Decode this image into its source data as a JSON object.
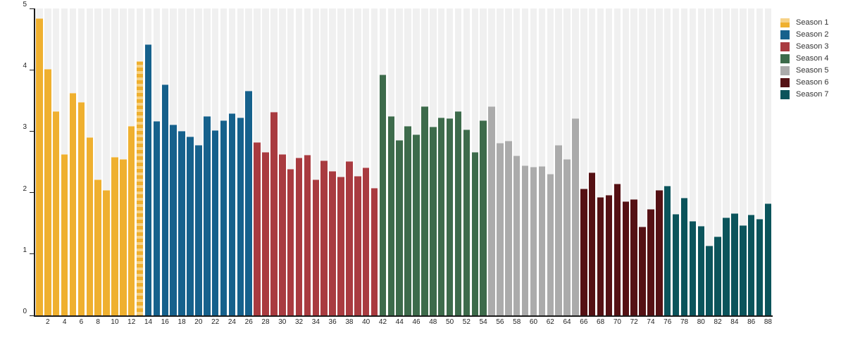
{
  "page": {
    "background_color": "#ffffff",
    "stripe_color": "#f0f0f0",
    "axis_color": "#1a1a1a",
    "text_color": "#222222"
  },
  "chart_data": {
    "type": "bar",
    "title": "",
    "xlabel": "",
    "ylabel": "",
    "ylim": [
      0,
      5
    ],
    "yticks": [
      "0",
      "1",
      "2",
      "3",
      "4",
      "5"
    ],
    "x_tick_labels_every": 2,
    "grid": "vertical background stripes, one per bar slot",
    "legend_position": "top-right",
    "hatch_light_color": "#f6d287",
    "hatched_episodes": [
      13
    ],
    "series": [
      {
        "name": "Season 1",
        "color": "#efb02f",
        "swatch_two_tone": true,
        "episodes": [
          1,
          2,
          3,
          4,
          5,
          6,
          7,
          8,
          9,
          10,
          11,
          12,
          13
        ],
        "values": [
          4.84,
          4.01,
          3.33,
          2.63,
          3.62,
          3.48,
          2.9,
          2.21,
          2.04,
          2.58,
          2.55,
          3.08,
          4.14
        ]
      },
      {
        "name": "Season 2",
        "color": "#16618c",
        "swatch_two_tone": false,
        "episodes": [
          14,
          15,
          16,
          17,
          18,
          19,
          20,
          21,
          22,
          23,
          24,
          25,
          26
        ],
        "values": [
          4.42,
          3.16,
          3.76,
          3.11,
          3.0,
          2.91,
          2.78,
          3.25,
          3.02,
          3.18,
          3.29,
          3.22,
          3.66
        ]
      },
      {
        "name": "Season 3",
        "color": "#a93b40",
        "swatch_two_tone": false,
        "episodes": [
          27,
          28,
          29,
          30,
          31,
          32,
          33,
          34,
          35,
          36,
          37,
          38,
          39,
          40,
          41
        ],
        "values": [
          2.82,
          2.66,
          3.32,
          2.63,
          2.39,
          2.57,
          2.61,
          2.21,
          2.52,
          2.35,
          2.26,
          2.51,
          2.27,
          2.41,
          2.08
        ]
      },
      {
        "name": "Season 4",
        "color": "#3d6b4b",
        "swatch_two_tone": false,
        "episodes": [
          42,
          43,
          44,
          45,
          46,
          47,
          48,
          49,
          50,
          51,
          52,
          53,
          54
        ],
        "values": [
          3.92,
          3.25,
          2.86,
          3.08,
          2.95,
          3.41,
          3.07,
          3.22,
          3.21,
          3.33,
          3.03,
          2.66,
          3.18
        ]
      },
      {
        "name": "Season 5",
        "color": "#ababab",
        "swatch_two_tone": false,
        "episodes": [
          55,
          56,
          57,
          58,
          59,
          60,
          61,
          62,
          63,
          64,
          65
        ],
        "values": [
          3.41,
          2.81,
          2.84,
          2.6,
          2.44,
          2.42,
          2.43,
          2.3,
          2.77,
          2.55,
          3.21
        ]
      },
      {
        "name": "Season 6",
        "color": "#551114",
        "swatch_two_tone": false,
        "episodes": [
          66,
          67,
          68,
          69,
          70,
          71,
          72,
          73,
          74,
          75
        ],
        "values": [
          2.07,
          2.33,
          1.93,
          1.96,
          2.14,
          1.86,
          1.89,
          1.45,
          1.73,
          2.04
        ]
      },
      {
        "name": "Season 7",
        "color": "#0b545b",
        "swatch_two_tone": false,
        "episodes": [
          76,
          77,
          78,
          79,
          80,
          81,
          82,
          83,
          84,
          85,
          86,
          87,
          88
        ],
        "values": [
          2.11,
          1.65,
          1.91,
          1.54,
          1.46,
          1.13,
          1.28,
          1.59,
          1.66,
          1.47,
          1.64,
          1.57,
          1.82
        ]
      }
    ]
  }
}
